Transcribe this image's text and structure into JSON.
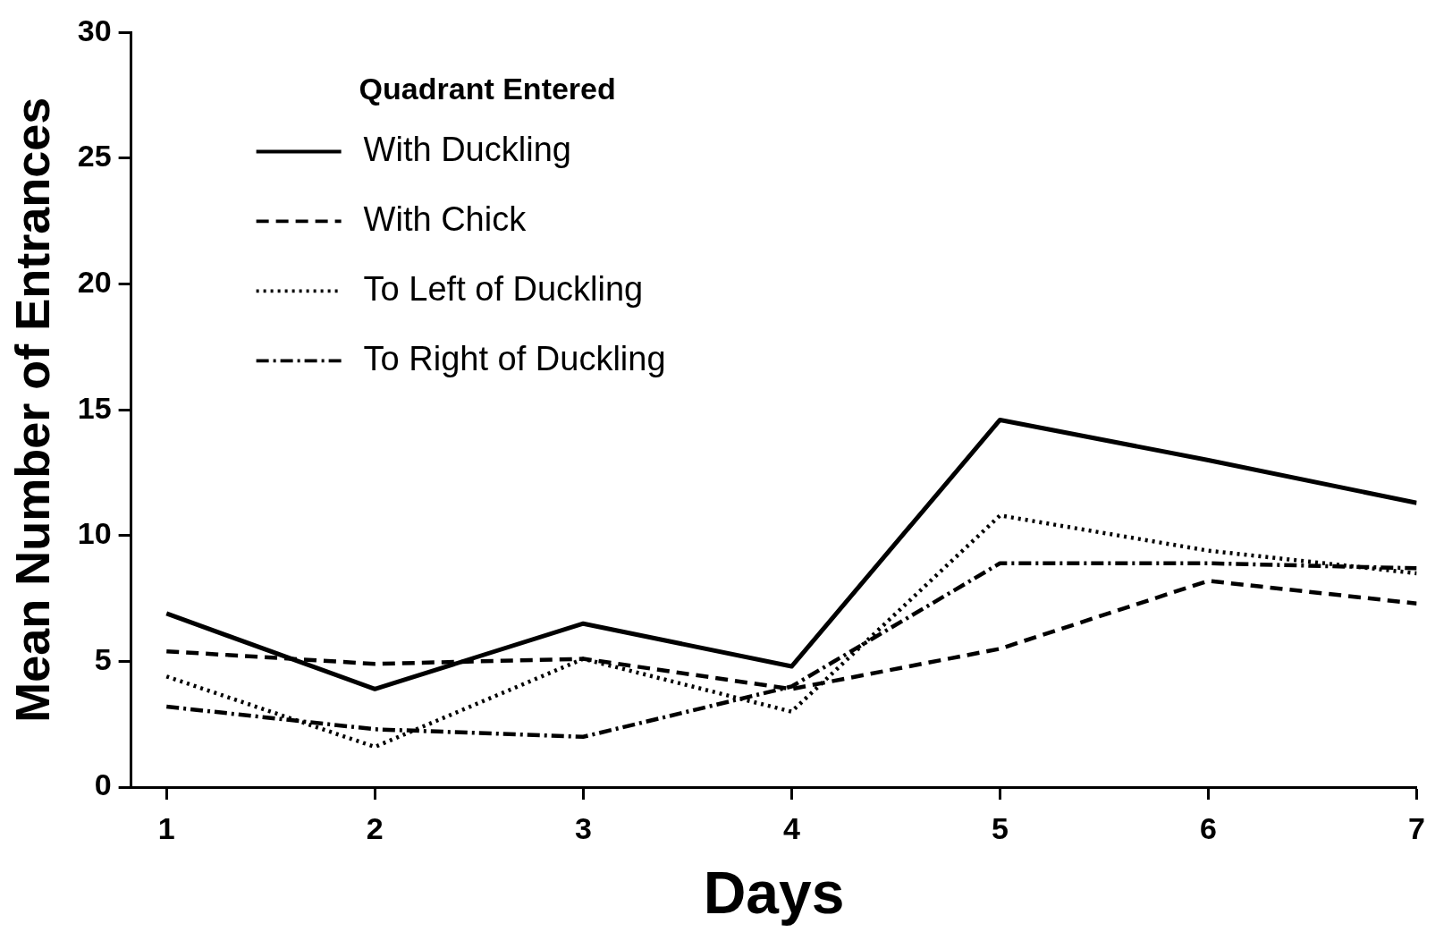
{
  "chart_data": {
    "type": "line",
    "xlabel": "Days",
    "ylabel": "Mean Number of Entrances",
    "legend_title": "Quadrant Entered",
    "legend": "top left",
    "grid": false,
    "marker": "none",
    "x": [
      1,
      2,
      3,
      4,
      5,
      6,
      7
    ],
    "xlim": [
      0.83,
      7
    ],
    "xticks": [
      1,
      2,
      3,
      4,
      5,
      6,
      7
    ],
    "ylim": [
      0,
      30
    ],
    "yticks": [
      0,
      5,
      10,
      15,
      20,
      25,
      30
    ],
    "series": [
      {
        "name": "With Duckling",
        "color": "#000000",
        "line_style": "solid",
        "values": [
          6.9,
          3.9,
          6.5,
          4.8,
          14.6,
          13.0,
          11.3
        ]
      },
      {
        "name": "With Chick",
        "color": "#000000",
        "line_style": "dashed",
        "values": [
          5.4,
          4.9,
          5.1,
          3.9,
          5.5,
          8.2,
          7.3
        ]
      },
      {
        "name": "To Left of Duckling",
        "color": "#000000",
        "line_style": "dotted",
        "values": [
          4.4,
          1.6,
          5.1,
          3.0,
          10.8,
          9.4,
          8.5
        ]
      },
      {
        "name": "To Right of Duckling",
        "color": "#000000",
        "line_style": "dashdot",
        "values": [
          3.2,
          2.3,
          2.0,
          4.0,
          8.9,
          8.9,
          8.7
        ]
      }
    ]
  }
}
